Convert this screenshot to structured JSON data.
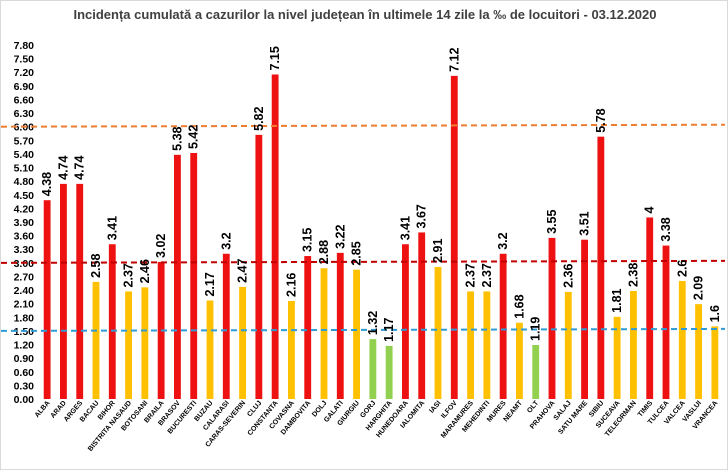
{
  "chart_data": {
    "type": "bar",
    "title": "Incidența cumulată a cazurilor la nivel județean în ultimele 14 zile la ‰ de locuitori - 03.12.2020",
    "xlabel": "",
    "ylabel": "",
    "ylim": [
      0,
      7.8
    ],
    "yticks": [
      "0.00",
      "0.30",
      "0.60",
      "0.90",
      "1.20",
      "1.50",
      "1.80",
      "2.10",
      "2.40",
      "2.70",
      "3.00",
      "3.30",
      "3.60",
      "3.90",
      "4.20",
      "4.50",
      "4.80",
      "5.10",
      "5.40",
      "5.70",
      "6.00",
      "6.30",
      "6.60",
      "6.90",
      "7.20",
      "7.50",
      "7.80"
    ],
    "grid": false,
    "legend": "none",
    "categories": [
      "ALBA",
      "ARAD",
      "ARGES",
      "BACAU",
      "BIHOR",
      "BISTRITA NASAUD",
      "BOTOSANI",
      "BRAILA",
      "BRASOV",
      "BUCURESTI",
      "BUZAU",
      "CALARASI",
      "CARAS-SEVERIN",
      "CLUJ",
      "CONSTANTA",
      "COVASNA",
      "DAMBOVITA",
      "DOLJ",
      "GALATI",
      "GIURGIU",
      "GORJ",
      "HARGHITA",
      "HUNEDOARA",
      "IALOMITA",
      "IASI",
      "ILFOV",
      "MARAMURES",
      "MEHEDINTI",
      "MURES",
      "NEAMT",
      "OLT",
      "PRAHOVA",
      "SALAJ",
      "SATU MARE",
      "SIBIU",
      "SUCEAVA",
      "TELEORMAN",
      "TIMIS",
      "TULCEA",
      "VALCEA",
      "VASLUI",
      "VRANCEA"
    ],
    "values": [
      4.38,
      4.74,
      4.74,
      2.58,
      3.41,
      2.37,
      2.46,
      3.02,
      5.38,
      5.42,
      2.17,
      3.2,
      2.47,
      5.82,
      7.15,
      2.16,
      3.15,
      2.88,
      3.22,
      2.85,
      1.32,
      1.17,
      3.41,
      3.67,
      2.91,
      7.12,
      2.37,
      2.37,
      3.2,
      1.68,
      1.19,
      3.55,
      2.36,
      3.51,
      5.78,
      1.81,
      2.38,
      4,
      3.38,
      2.6,
      2.09,
      1.6
    ],
    "value_labels": [
      "4.38",
      "4.74",
      "4.74",
      "2.58",
      "3.41",
      "2.37",
      "2.46",
      "3.02",
      "5.38",
      "5.42",
      "2.17",
      "3.2",
      "2.47",
      "5.82",
      "7.15",
      "2.16",
      "3.15",
      "2.88",
      "3.22",
      "2.85",
      "1.32",
      "1.17",
      "3.41",
      "3.67",
      "2.91",
      "7.12",
      "2.37",
      "2.37",
      "3.2",
      "1.68",
      "1.19",
      "3.55",
      "2.36",
      "3.51",
      "5.78",
      "1.81",
      "2.38",
      "4",
      "3.38",
      "2.6",
      "2.09",
      "1.6"
    ],
    "reference_lines": [
      {
        "value": 6.0,
        "color": "#ed7d31"
      },
      {
        "value": 3.0,
        "color": "#c00000"
      },
      {
        "value": 1.5,
        "color": "#2e9bd6"
      }
    ],
    "colors": {
      "red": "#ee1111",
      "yellow": "#ffc000",
      "green": "#92d050"
    }
  }
}
